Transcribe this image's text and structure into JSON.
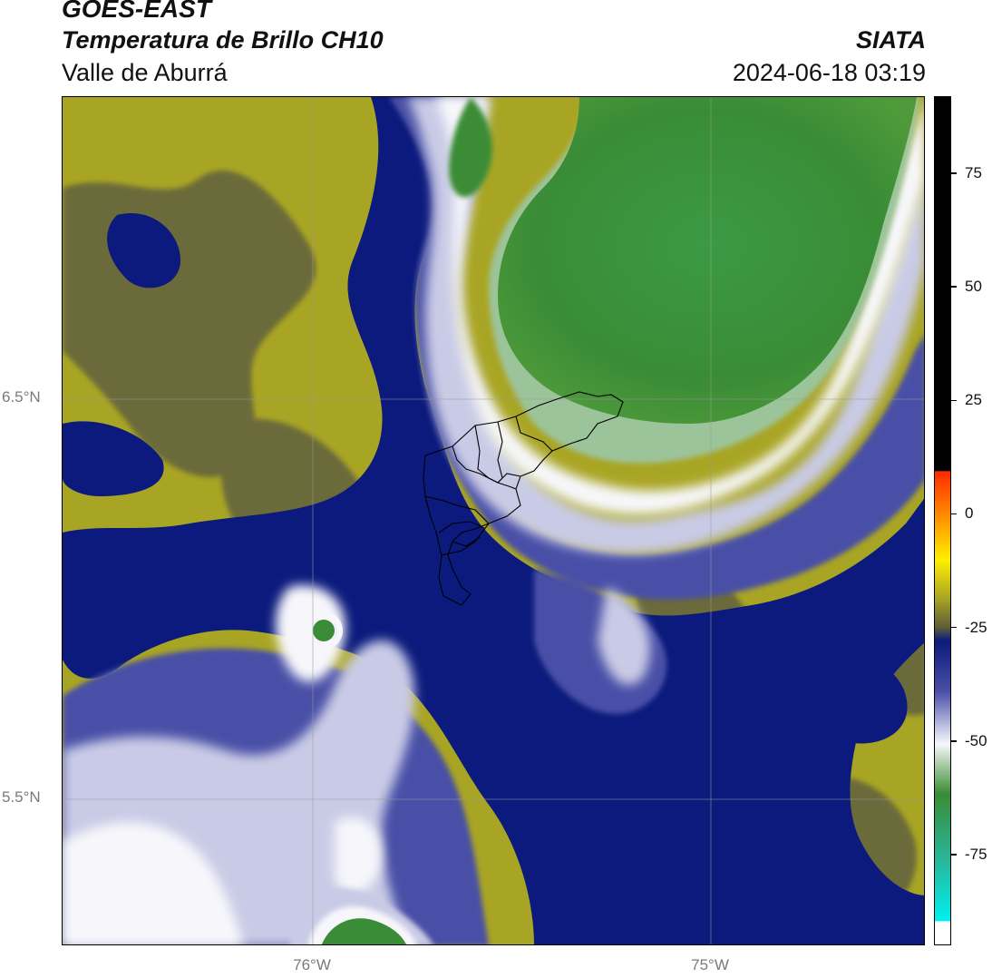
{
  "header": {
    "satellite": "GOES-EAST",
    "product": "Temperatura de Brillo CH10",
    "region": "Valle de Aburrá",
    "organization": "SIATA",
    "timestamp": "2024-06-18 03:19"
  },
  "axes": {
    "lat_labels": [
      "6.5°N",
      "5.5°N"
    ],
    "lon_labels": [
      "76°W",
      "75°W"
    ]
  },
  "colorbar": {
    "tick_labels": [
      "75",
      "50",
      "25",
      "0",
      "-25",
      "-50",
      "-75"
    ],
    "tick_values": [
      75,
      50,
      25,
      0,
      -25,
      -50,
      -75
    ],
    "range": [
      -95,
      92
    ]
  },
  "colors": {
    "warm_yellow": "#a9a524",
    "olive_dark": "#5e5c38",
    "navy": "#0b1a7c",
    "mid_blue": "#4a4fa6",
    "lavender": "#c9cbe6",
    "white": "#f7f7fb",
    "green_cold": "#3e8f3a",
    "boundary_line": "#000000"
  }
}
